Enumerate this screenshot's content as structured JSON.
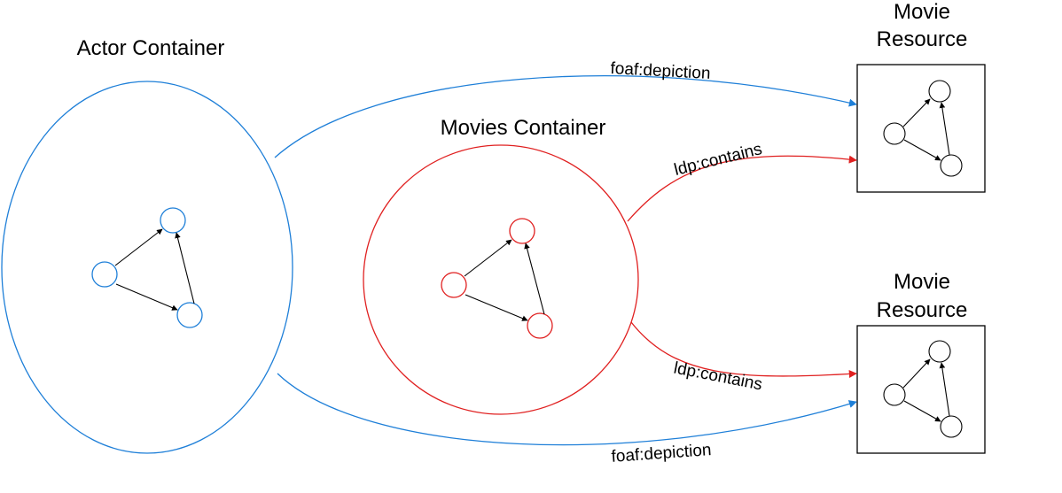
{
  "colors": {
    "actor": "#1e7fd8",
    "movies": "#e02020",
    "resource": "#000000",
    "inner_arrow": "#000000"
  },
  "containers": {
    "actor": {
      "title": "Actor Container"
    },
    "movies": {
      "title": "Movies Container"
    }
  },
  "resources": {
    "top": {
      "title_line1": "Movie",
      "title_line2": "Resource"
    },
    "bottom": {
      "title_line1": "Movie",
      "title_line2": "Resource"
    }
  },
  "edges": {
    "depiction_top": "foaf:depiction",
    "contains_top": "ldp:contains",
    "contains_bottom": "ldp:contains",
    "depiction_bottom": "foaf:depiction"
  }
}
